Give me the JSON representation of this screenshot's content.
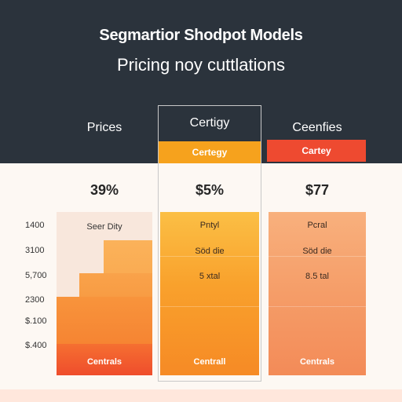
{
  "header": {
    "title": "Segmartior Shodpot Models",
    "subtitle": "Pricing noy cuttlations"
  },
  "columns": [
    {
      "header": "Prices",
      "value": "39%",
      "top_label": "Seer Dity",
      "footer": "Centrals"
    },
    {
      "header": "Certigy",
      "tag": "Certegy",
      "value": "$5%",
      "rows": [
        "Pntyl",
        "Söd die",
        "5 xtal"
      ],
      "footer": "Centrall"
    },
    {
      "header": "Ceenfies",
      "tag": "Cartey",
      "value": "$77",
      "rows": [
        "Pcral",
        "Söd die",
        "8.5 tal"
      ],
      "footer": "Centrals"
    }
  ],
  "y_axis_labels": [
    "1400",
    "3100",
    "5,700",
    "2300",
    "$.100",
    "$.400"
  ],
  "colors": {
    "header_bg": "#2b333c",
    "orange": "#f6a21d",
    "red": "#ee4a30",
    "peach": "#f59d68"
  }
}
